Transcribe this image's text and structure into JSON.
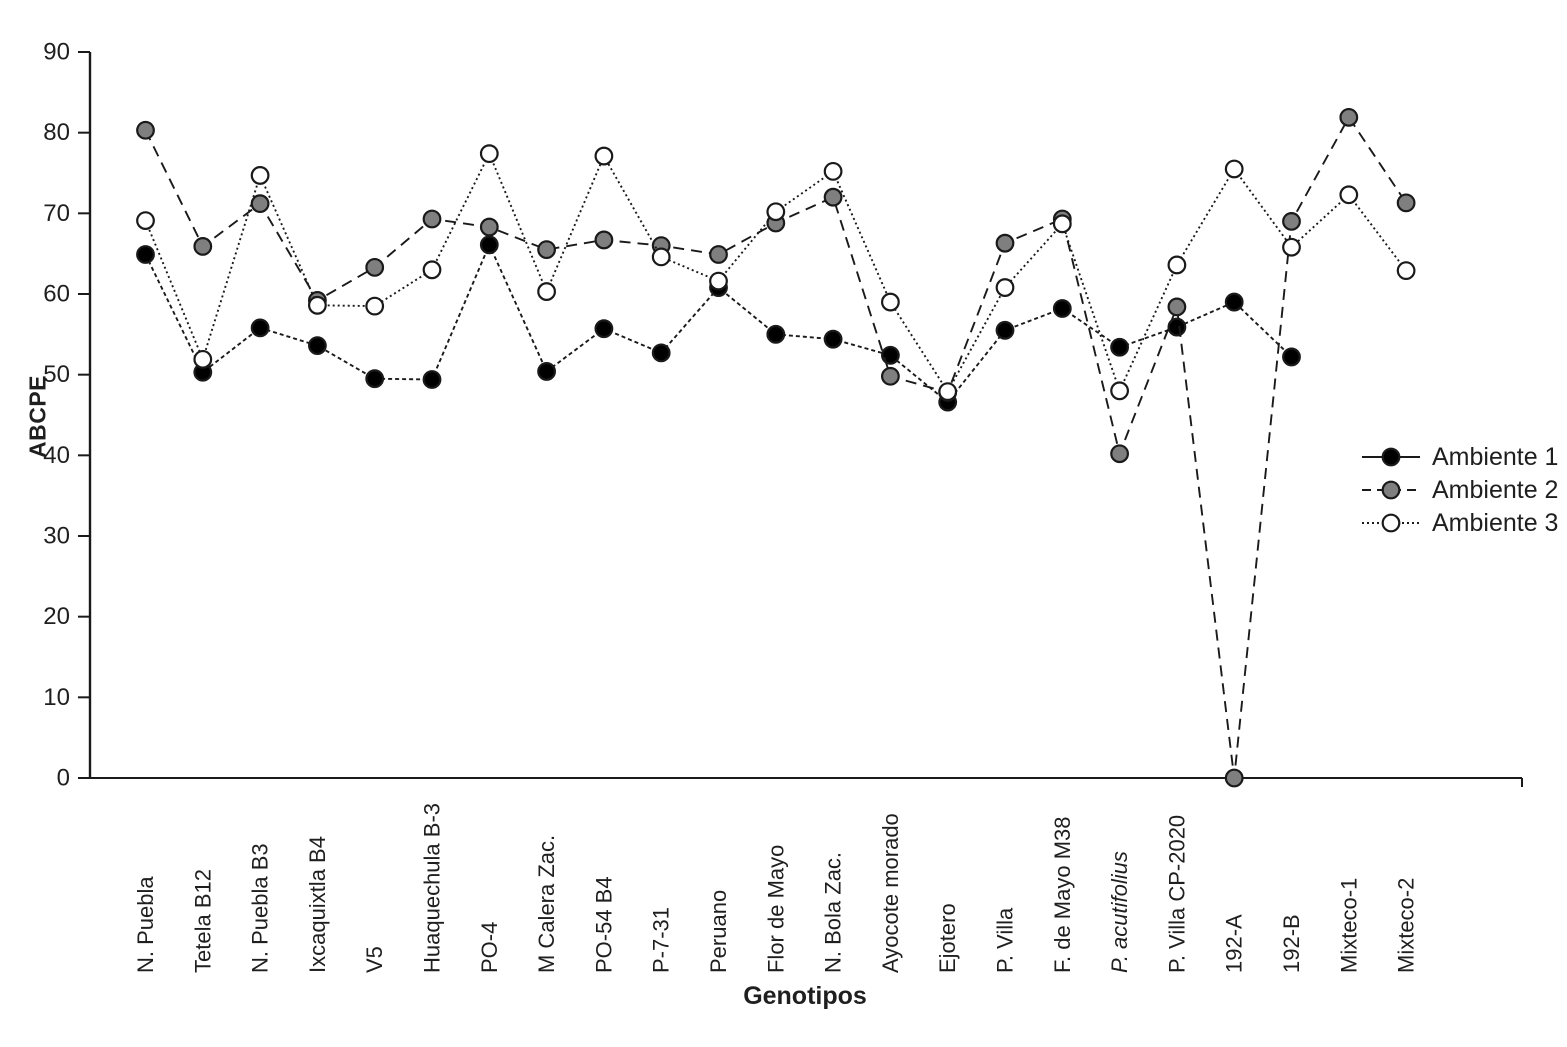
{
  "chart_data": {
    "type": "line",
    "title": "",
    "xlabel": "Genotipos",
    "ylabel": "ABCPE",
    "ylim": [
      0,
      90
    ],
    "yticks": [
      0,
      10,
      20,
      30,
      40,
      50,
      60,
      70,
      80,
      90
    ],
    "grid": false,
    "legend_position": "right-middle",
    "categories": [
      "N. Puebla",
      "Tetela B12",
      "N. Puebla B3",
      "Ixcaquixtla B4",
      "V5",
      "Huaquechula B-3",
      "PO-4",
      "M Calera Zac.",
      "PO-54 B4",
      "P-7-31",
      "Peruano",
      "Flor de Mayo",
      "N. Bola Zac.",
      "Ayocote morado",
      "Ejotero",
      "P. Villa",
      "F. de Mayo M38",
      "P. acutifolius",
      "P. Villa CP-2020",
      "192-A",
      "192-B",
      "Mixteco-1",
      "Mixteco-2"
    ],
    "italic_categories": [
      "P. acutifolius"
    ],
    "series": [
      {
        "name": "Ambiente 1",
        "marker": "filled-black-circle",
        "marker_fill": "#000000",
        "line_dash": "4 3",
        "legend_dash": "",
        "values": [
          64.9,
          50.3,
          55.8,
          53.6,
          49.5,
          49.4,
          66.1,
          50.4,
          55.7,
          52.7,
          60.8,
          55.0,
          54.4,
          52.4,
          46.6,
          55.5,
          58.2,
          53.4,
          55.9,
          59.0,
          52.2,
          null,
          null
        ]
      },
      {
        "name": "Ambiente 2",
        "marker": "filled-gray-circle",
        "marker_fill": "#7f7f7f",
        "line_dash": "11 7",
        "legend_dash": "9 6",
        "values": [
          80.3,
          65.9,
          71.2,
          59.2,
          63.3,
          69.3,
          68.3,
          65.5,
          66.7,
          66.0,
          64.9,
          68.8,
          72.0,
          49.8,
          47.8,
          66.3,
          69.3,
          40.2,
          58.4,
          0,
          69.0,
          81.9,
          71.3
        ]
      },
      {
        "name": "Ambiente 3",
        "marker": "open-white-circle",
        "marker_fill": "#ffffff",
        "line_dash": "2 3",
        "legend_dash": "2 3",
        "values": [
          69.1,
          51.9,
          74.7,
          58.6,
          58.5,
          63.0,
          77.4,
          60.3,
          77.1,
          64.6,
          61.6,
          70.2,
          75.2,
          59.0,
          47.9,
          60.8,
          68.7,
          48.0,
          63.6,
          75.5,
          65.8,
          72.3,
          62.9
        ]
      }
    ]
  },
  "axis_titles": {
    "x": "Genotipos",
    "y": "ABCPE"
  },
  "legend": {
    "items": [
      "Ambiente 1",
      "Ambiente 2",
      "Ambiente 3"
    ]
  },
  "colors": {
    "line": "#1a1a1a",
    "marker_stroke": "#1a1a1a",
    "text": "#1f1f1f",
    "gray_fill": "#7f7f7f",
    "white_fill": "#ffffff",
    "black_fill": "#000000"
  }
}
